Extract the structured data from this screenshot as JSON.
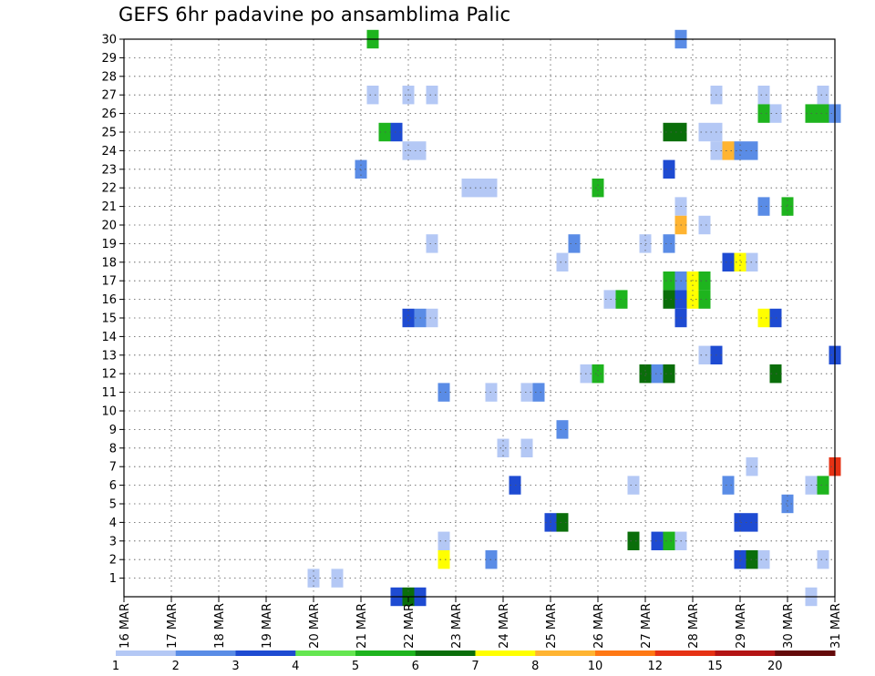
{
  "chart_data": {
    "type": "heatmap",
    "title": "GEFS 6hr padavine po ansamblima Palic",
    "xlabel": "",
    "ylabel": "",
    "x_ticks": [
      "16 MAR",
      "17 MAR",
      "18 MAR",
      "19 MAR",
      "20 MAR",
      "21 MAR",
      "22 MAR",
      "23 MAR",
      "24 MAR",
      "25 MAR",
      "26 MAR",
      "27 MAR",
      "28 MAR",
      "29 MAR",
      "30 MAR",
      "31 MAR"
    ],
    "y_ticks": [
      "1",
      "2",
      "3",
      "4",
      "5",
      "6",
      "7",
      "8",
      "9",
      "10",
      "11",
      "12",
      "13",
      "14",
      "15",
      "16",
      "17",
      "18",
      "19",
      "20",
      "21",
      "22",
      "23",
      "24",
      "25",
      "26",
      "27",
      "28",
      "29",
      "30"
    ],
    "x_range_days": [
      0,
      15
    ],
    "y_range": [
      0,
      30
    ],
    "grid": true,
    "legend": {
      "placement": "bottom",
      "labels": [
        "1",
        "2",
        "3",
        "4",
        "5",
        "6",
        "7",
        "8",
        "10",
        "12",
        "15",
        "20"
      ],
      "colors": [
        "#b4c8f5",
        "#5a8ce6",
        "#1e4bd2",
        "#64e650",
        "#1eb41e",
        "#0a6e0a",
        "#ffff00",
        "#ffb432",
        "#ff7814",
        "#e63214",
        "#b41414",
        "#640a0a"
      ]
    },
    "cells": [
      {
        "t": 5.25,
        "m": 30,
        "l": 5
      },
      {
        "t": 11.75,
        "m": 30,
        "l": 2
      },
      {
        "t": 5.25,
        "m": 27,
        "l": 1
      },
      {
        "t": 6.0,
        "m": 27,
        "l": 1
      },
      {
        "t": 6.5,
        "m": 27,
        "l": 1
      },
      {
        "t": 12.5,
        "m": 27,
        "l": 1
      },
      {
        "t": 13.5,
        "m": 27,
        "l": 1
      },
      {
        "t": 14.75,
        "m": 27,
        "l": 1
      },
      {
        "t": 13.5,
        "m": 26,
        "l": 5
      },
      {
        "t": 13.75,
        "m": 26,
        "l": 1
      },
      {
        "t": 14.5,
        "m": 26,
        "l": 5
      },
      {
        "t": 14.75,
        "m": 26,
        "l": 5
      },
      {
        "t": 15.0,
        "m": 26,
        "l": 2
      },
      {
        "t": 5.5,
        "m": 25,
        "l": 5
      },
      {
        "t": 5.75,
        "m": 25,
        "l": 3
      },
      {
        "t": 11.5,
        "m": 25,
        "l": 6
      },
      {
        "t": 11.75,
        "m": 25,
        "l": 6
      },
      {
        "t": 12.25,
        "m": 25,
        "l": 1
      },
      {
        "t": 12.5,
        "m": 25,
        "l": 1
      },
      {
        "t": 6.0,
        "m": 24,
        "l": 1
      },
      {
        "t": 6.25,
        "m": 24,
        "l": 1
      },
      {
        "t": 12.5,
        "m": 24,
        "l": 1
      },
      {
        "t": 12.75,
        "m": 24,
        "l": 8
      },
      {
        "t": 13.0,
        "m": 24,
        "l": 2
      },
      {
        "t": 13.25,
        "m": 24,
        "l": 2
      },
      {
        "t": 5.0,
        "m": 23,
        "l": 2
      },
      {
        "t": 11.5,
        "m": 23,
        "l": 3
      },
      {
        "t": 7.25,
        "m": 22,
        "l": 1
      },
      {
        "t": 7.5,
        "m": 22,
        "l": 1
      },
      {
        "t": 7.75,
        "m": 22,
        "l": 1
      },
      {
        "t": 10.0,
        "m": 22,
        "l": 5
      },
      {
        "t": 11.75,
        "m": 21,
        "l": 1
      },
      {
        "t": 13.5,
        "m": 21,
        "l": 2
      },
      {
        "t": 14.0,
        "m": 21,
        "l": 5
      },
      {
        "t": 11.75,
        "m": 20,
        "l": 8
      },
      {
        "t": 12.25,
        "m": 20,
        "l": 1
      },
      {
        "t": 6.5,
        "m": 19,
        "l": 1
      },
      {
        "t": 9.5,
        "m": 19,
        "l": 2
      },
      {
        "t": 11.0,
        "m": 19,
        "l": 1
      },
      {
        "t": 11.5,
        "m": 19,
        "l": 2
      },
      {
        "t": 9.25,
        "m": 18,
        "l": 1
      },
      {
        "t": 12.75,
        "m": 18,
        "l": 3
      },
      {
        "t": 13.0,
        "m": 18,
        "l": 7
      },
      {
        "t": 13.25,
        "m": 18,
        "l": 1
      },
      {
        "t": 11.5,
        "m": 17,
        "l": 5
      },
      {
        "t": 11.75,
        "m": 17,
        "l": 2
      },
      {
        "t": 12.0,
        "m": 17,
        "l": 7
      },
      {
        "t": 12.25,
        "m": 17,
        "l": 5
      },
      {
        "t": 11.5,
        "m": 16,
        "l": 6
      },
      {
        "t": 11.75,
        "m": 16,
        "l": 3
      },
      {
        "t": 12.0,
        "m": 16,
        "l": 7
      },
      {
        "t": 12.25,
        "m": 16,
        "l": 5
      },
      {
        "t": 10.25,
        "m": 16,
        "l": 1
      },
      {
        "t": 10.5,
        "m": 16,
        "l": 5
      },
      {
        "t": 11.75,
        "m": 15,
        "l": 3
      },
      {
        "t": 13.5,
        "m": 15,
        "l": 7
      },
      {
        "t": 13.75,
        "m": 15,
        "l": 3
      },
      {
        "t": 6.0,
        "m": 15,
        "l": 3
      },
      {
        "t": 6.25,
        "m": 15,
        "l": 2
      },
      {
        "t": 6.5,
        "m": 15,
        "l": 1
      },
      {
        "t": 12.25,
        "m": 13,
        "l": 1
      },
      {
        "t": 12.5,
        "m": 13,
        "l": 3
      },
      {
        "t": 15.0,
        "m": 13,
        "l": 3
      },
      {
        "t": 9.75,
        "m": 12,
        "l": 1
      },
      {
        "t": 10.0,
        "m": 12,
        "l": 5
      },
      {
        "t": 11.0,
        "m": 12,
        "l": 6
      },
      {
        "t": 11.25,
        "m": 12,
        "l": 2
      },
      {
        "t": 11.5,
        "m": 12,
        "l": 6
      },
      {
        "t": 13.75,
        "m": 12,
        "l": 6
      },
      {
        "t": 6.75,
        "m": 11,
        "l": 2
      },
      {
        "t": 7.75,
        "m": 11,
        "l": 1
      },
      {
        "t": 8.5,
        "m": 11,
        "l": 1
      },
      {
        "t": 8.75,
        "m": 11,
        "l": 2
      },
      {
        "t": 9.25,
        "m": 9,
        "l": 2
      },
      {
        "t": 8.0,
        "m": 8,
        "l": 1
      },
      {
        "t": 8.5,
        "m": 8,
        "l": 1
      },
      {
        "t": 13.25,
        "m": 7,
        "l": 1
      },
      {
        "t": 15.0,
        "m": 7,
        "l": 10
      },
      {
        "t": 8.25,
        "m": 6,
        "l": 3
      },
      {
        "t": 10.75,
        "m": 6,
        "l": 1
      },
      {
        "t": 12.75,
        "m": 6,
        "l": 2
      },
      {
        "t": 14.5,
        "m": 6,
        "l": 1
      },
      {
        "t": 14.75,
        "m": 6,
        "l": 5
      },
      {
        "t": 14.0,
        "m": 5,
        "l": 2
      },
      {
        "t": 9.0,
        "m": 4,
        "l": 3
      },
      {
        "t": 9.25,
        "m": 4,
        "l": 6
      },
      {
        "t": 13.0,
        "m": 4,
        "l": 3
      },
      {
        "t": 13.25,
        "m": 4,
        "l": 3
      },
      {
        "t": 6.75,
        "m": 3,
        "l": 1
      },
      {
        "t": 10.75,
        "m": 3,
        "l": 6
      },
      {
        "t": 11.25,
        "m": 3,
        "l": 3
      },
      {
        "t": 11.5,
        "m": 3,
        "l": 5
      },
      {
        "t": 11.75,
        "m": 3,
        "l": 1
      },
      {
        "t": 6.75,
        "m": 2,
        "l": 7
      },
      {
        "t": 7.75,
        "m": 2,
        "l": 2
      },
      {
        "t": 13.0,
        "m": 2,
        "l": 3
      },
      {
        "t": 13.25,
        "m": 2,
        "l": 6
      },
      {
        "t": 13.5,
        "m": 2,
        "l": 1
      },
      {
        "t": 14.75,
        "m": 2,
        "l": 1
      },
      {
        "t": 4.0,
        "m": 1,
        "l": 1
      },
      {
        "t": 4.5,
        "m": 1,
        "l": 1
      },
      {
        "t": 5.75,
        "m": 0,
        "l": 3
      },
      {
        "t": 6.0,
        "m": 0,
        "l": 6
      },
      {
        "t": 6.25,
        "m": 0,
        "l": 3
      },
      {
        "t": 14.5,
        "m": 0,
        "l": 1
      }
    ]
  }
}
